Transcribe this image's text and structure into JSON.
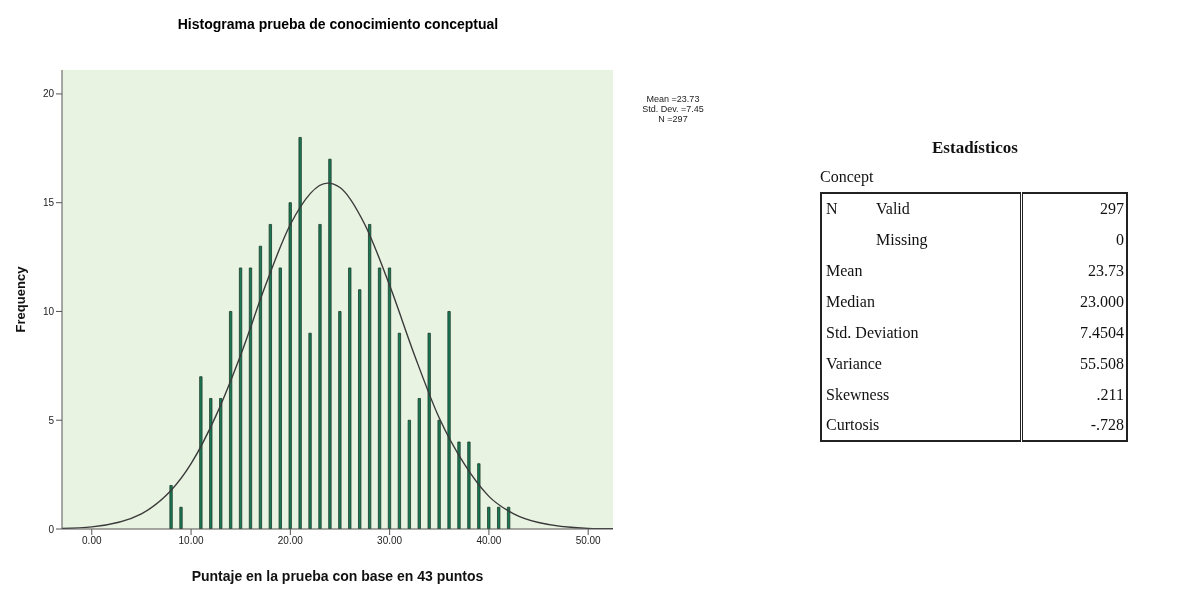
{
  "chart_data": [
    {
      "type": "histogram",
      "title": "Histograma prueba de conocimiento conceptual",
      "xlabel": "Puntaje en la prueba con base en 43 puntos",
      "ylabel": "Frequency",
      "bins": [
        7.5,
        8.5,
        9.5,
        10.5,
        11.5,
        12.5,
        13.5,
        14.5,
        15.5,
        16.5,
        17.5,
        18.5,
        19.5,
        20.5,
        21.5,
        22.5,
        23.5,
        24.5,
        25.5,
        26.5,
        27.5,
        28.5,
        29.5,
        30.5,
        31.5,
        32.5,
        33.5,
        34.5,
        35.5,
        36.5,
        37.5,
        38.5,
        39.5,
        40.5,
        41.5,
        42.5
      ],
      "series": [
        {
          "type": "histogram",
          "color": "#1b7a56",
          "values": [
            2,
            1,
            0,
            7,
            6,
            6,
            10,
            12,
            12,
            13,
            14,
            12,
            15,
            18,
            9,
            14,
            17,
            10,
            12,
            11,
            14,
            12,
            12,
            9,
            5,
            6,
            9,
            5,
            10,
            4,
            4,
            3,
            1,
            1,
            1
          ]
        },
        {
          "type": "line",
          "color": "#3a3a3a",
          "x": [
            -3,
            0,
            5,
            10,
            12.5,
            15,
            17.5,
            20,
            23.73,
            25,
            27.5,
            30,
            32.5,
            35,
            37.5,
            40,
            42.5,
            45,
            50,
            52.5
          ],
          "values": [
            0.03,
            0.1,
            0.7,
            3.0,
            5.2,
            8.0,
            11.2,
            14.0,
            15.9,
            15.7,
            14.0,
            11.2,
            8.0,
            5.1,
            3.0,
            1.5,
            0.7,
            0.3,
            0.03,
            0.01
          ]
        }
      ],
      "xlim": [
        -3,
        52.5
      ],
      "xticks": [
        {
          "value": 0,
          "label": "0.00"
        },
        {
          "value": 10,
          "label": "10.00"
        },
        {
          "value": 20,
          "label": "20.00"
        },
        {
          "value": 30,
          "label": "30.00"
        },
        {
          "value": 40,
          "label": "40.00"
        },
        {
          "value": 50,
          "label": "50.00"
        }
      ],
      "ylim": [
        0,
        21.1
      ],
      "yticks": [
        0,
        5,
        10,
        15,
        20
      ],
      "annotations": [
        "Mean =23.73",
        "Std. Dev. =7.45",
        "N =297"
      ]
    },
    {
      "type": "other",
      "title": "Estadísticos",
      "subtitle": "Concept",
      "annotations": [
        "N"
      ],
      "categories": [
        "Valid",
        "Missing",
        "Mean",
        "Median",
        "Std. Deviation",
        "Variance",
        "Skewness",
        "Curtosis"
      ],
      "value_labels": [
        "297",
        "0",
        "23.73",
        "23.000",
        "7.4504",
        "55.508",
        ".211",
        "-.728"
      ]
    }
  ]
}
